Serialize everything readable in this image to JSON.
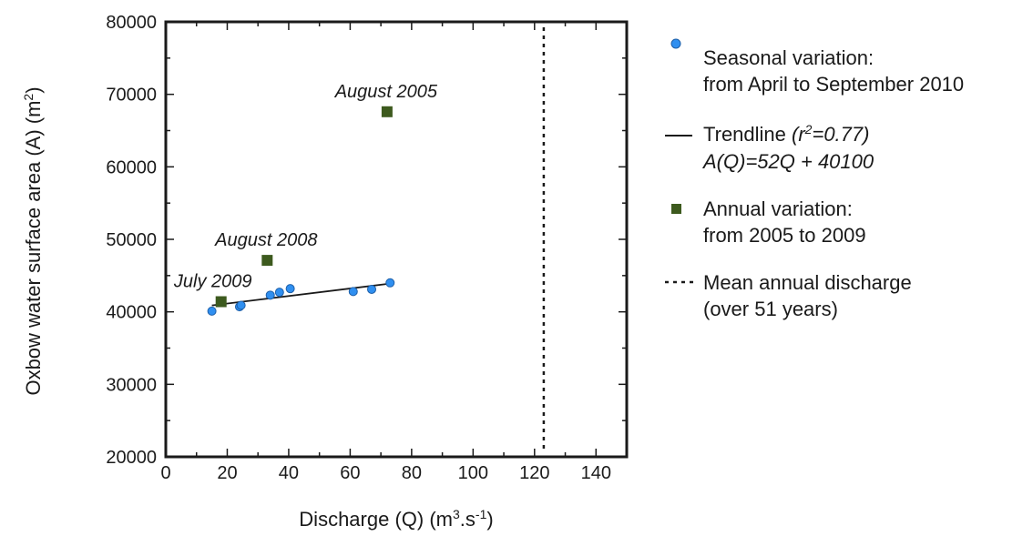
{
  "chart_data": {
    "type": "scatter",
    "xlabel": "Discharge (Q) (m³.s⁻¹)",
    "xlabel_main": "Discharge (Q) (m",
    "xlabel_sup1": "3",
    "xlabel_mid": ".s",
    "xlabel_sup2": "-1",
    "xlabel_end": ")",
    "ylabel": "Oxbow water surface area (A) (m²)",
    "ylabel_main": "Oxbow water surface area (A) (m",
    "ylabel_sup": "2",
    "ylabel_end": ")",
    "xlim": [
      0,
      150
    ],
    "ylim": [
      20000,
      80000
    ],
    "xticks": [
      0,
      20,
      40,
      60,
      80,
      100,
      120,
      140
    ],
    "yticks": [
      20000,
      30000,
      40000,
      50000,
      60000,
      70000,
      80000
    ],
    "grid": false,
    "legend_position": "right",
    "series": [
      {
        "name": "Seasonal variation: from April to September 2010",
        "marker": "circle",
        "color": "#2f8ff0",
        "points": [
          {
            "x": 15,
            "y": 40100
          },
          {
            "x": 24,
            "y": 40700
          },
          {
            "x": 24.5,
            "y": 40900
          },
          {
            "x": 34,
            "y": 42300
          },
          {
            "x": 37,
            "y": 42700
          },
          {
            "x": 40.5,
            "y": 43200
          },
          {
            "x": 61,
            "y": 42800
          },
          {
            "x": 67,
            "y": 43100
          },
          {
            "x": 73,
            "y": 44000
          }
        ]
      },
      {
        "name": "Annual variation: from 2005 to 2009",
        "marker": "square",
        "color": "#3d5a1e",
        "points": [
          {
            "x": 72,
            "y": 67600,
            "label": "August 2005"
          },
          {
            "x": 33,
            "y": 47100,
            "label": "August 2008"
          },
          {
            "x": 18,
            "y": 41400,
            "label": "July 2009"
          }
        ]
      }
    ],
    "trendline": {
      "name": "Trendline (r²=0.77) A(Q)=52Q + 40100",
      "slope": 52,
      "intercept": 40100,
      "x_range": [
        15,
        73
      ],
      "r2": "0.77"
    },
    "mean_annual_discharge": 123,
    "legend": [
      {
        "key": "seasonal",
        "line1": "Seasonal variation:",
        "line2": "from April to September 2010"
      },
      {
        "key": "trendline",
        "line1_a": "Trendline ",
        "line1_b": "(r",
        "line1_sup": "2",
        "line1_c": "=0.77)",
        "line2": "A(Q)=52Q + 40100"
      },
      {
        "key": "annual",
        "line1": "Annual variation:",
        "line2": "from 2005 to 2009"
      },
      {
        "key": "mean",
        "line1": "Mean annual discharge",
        "line2": "(over 51 years)"
      }
    ]
  }
}
